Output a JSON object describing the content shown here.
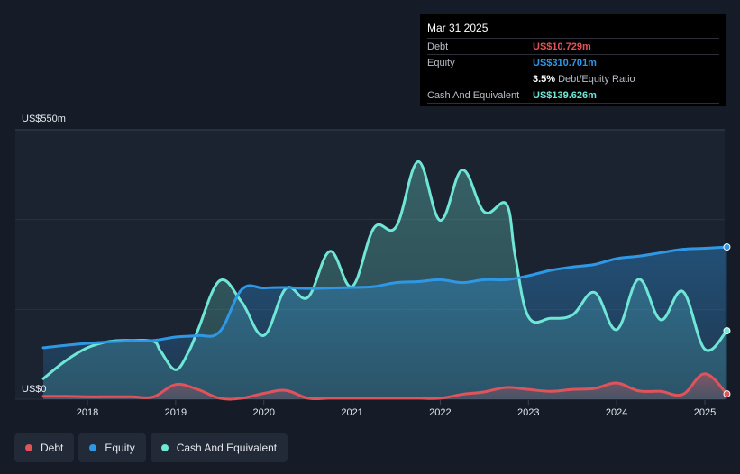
{
  "colors": {
    "background": "#151c28",
    "debt": "#e0535b",
    "equity": "#2f98e6",
    "cash": "#6fe6d6",
    "grid": "#2a313d",
    "axis_text": "#e6e9ee"
  },
  "tooltip": {
    "date": "Mar 31 2025",
    "rows": [
      {
        "label": "Debt",
        "value": "US$10.729m",
        "color": "#e0535b"
      },
      {
        "label": "Equity",
        "value": "US$310.701m",
        "color": "#2f98e6"
      },
      {
        "label": "",
        "value": "3.5%",
        "suffix": "Debt/Equity Ratio",
        "color": "#ffffff"
      },
      {
        "label": "Cash And Equivalent",
        "value": "US$139.626m",
        "color": "#6fe6d6"
      }
    ]
  },
  "legend": [
    {
      "label": "Debt",
      "color": "#e0535b"
    },
    {
      "label": "Equity",
      "color": "#2f98e6"
    },
    {
      "label": "Cash And Equivalent",
      "color": "#6fe6d6"
    }
  ],
  "chart_data": {
    "type": "area",
    "title": "",
    "xlabel": "",
    "ylabel": "",
    "y_top_label": "US$550m",
    "y_bottom_label": "US$0",
    "ylim": [
      0,
      550
    ],
    "xlim": [
      2017.5,
      2025.25
    ],
    "x_ticks": [
      2018,
      2019,
      2020,
      2021,
      2022,
      2023,
      2024,
      2025
    ],
    "x_tick_labels": [
      "2018",
      "2019",
      "2020",
      "2021",
      "2022",
      "2023",
      "2024",
      "2025"
    ],
    "series": [
      {
        "name": "Cash And Equivalent",
        "color": "#6fe6d6",
        "x": [
          2017.5,
          2017.75,
          2018.0,
          2018.25,
          2018.5,
          2018.75,
          2018.83,
          2019.0,
          2019.15,
          2019.25,
          2019.5,
          2019.75,
          2020.0,
          2020.25,
          2020.5,
          2020.75,
          2021.0,
          2021.25,
          2021.5,
          2021.75,
          2022.0,
          2022.25,
          2022.5,
          2022.75,
          2022.85,
          2023.0,
          2023.25,
          2023.5,
          2023.75,
          2024.0,
          2024.25,
          2024.5,
          2024.75,
          2025.0,
          2025.25
        ],
        "values": [
          42,
          78,
          105,
          118,
          120,
          118,
          98,
          60,
          98,
          140,
          242,
          198,
          130,
          226,
          208,
          302,
          230,
          350,
          352,
          485,
          365,
          468,
          382,
          398,
          292,
          168,
          165,
          172,
          218,
          142,
          245,
          162,
          220,
          102,
          139.626
        ]
      },
      {
        "name": "Equity",
        "color": "#2f98e6",
        "x": [
          2017.5,
          2017.75,
          2018.0,
          2018.25,
          2018.5,
          2018.75,
          2019.0,
          2019.25,
          2019.5,
          2019.75,
          2020.0,
          2020.25,
          2020.5,
          2020.75,
          2021.0,
          2021.25,
          2021.5,
          2021.75,
          2022.0,
          2022.25,
          2022.5,
          2022.75,
          2023.0,
          2023.25,
          2023.5,
          2023.75,
          2024.0,
          2024.25,
          2024.5,
          2024.75,
          2025.0,
          2025.25
        ],
        "values": [
          105,
          110,
          114,
          117,
          119,
          120,
          127,
          130,
          138,
          224,
          227,
          228,
          226,
          227,
          228,
          230,
          238,
          240,
          244,
          238,
          244,
          244,
          252,
          263,
          270,
          275,
          287,
          292,
          299,
          306,
          308,
          310.701
        ]
      },
      {
        "name": "Debt",
        "color": "#e0535b",
        "x": [
          2017.5,
          2017.75,
          2018.0,
          2018.25,
          2018.5,
          2018.75,
          2019.0,
          2019.25,
          2019.5,
          2019.75,
          2020.0,
          2020.25,
          2020.5,
          2020.75,
          2021.0,
          2021.25,
          2021.5,
          2021.75,
          2022.0,
          2022.25,
          2022.5,
          2022.75,
          2023.0,
          2023.25,
          2023.5,
          2023.75,
          2024.0,
          2024.25,
          2024.5,
          2024.75,
          2025.0,
          2025.25
        ],
        "values": [
          6,
          6,
          5,
          5,
          5,
          5,
          30,
          20,
          2,
          2,
          12,
          18,
          2,
          2,
          2,
          2,
          2,
          2,
          2,
          10,
          15,
          24,
          20,
          16,
          20,
          22,
          33,
          17,
          16,
          10,
          52,
          10.729
        ]
      }
    ]
  }
}
